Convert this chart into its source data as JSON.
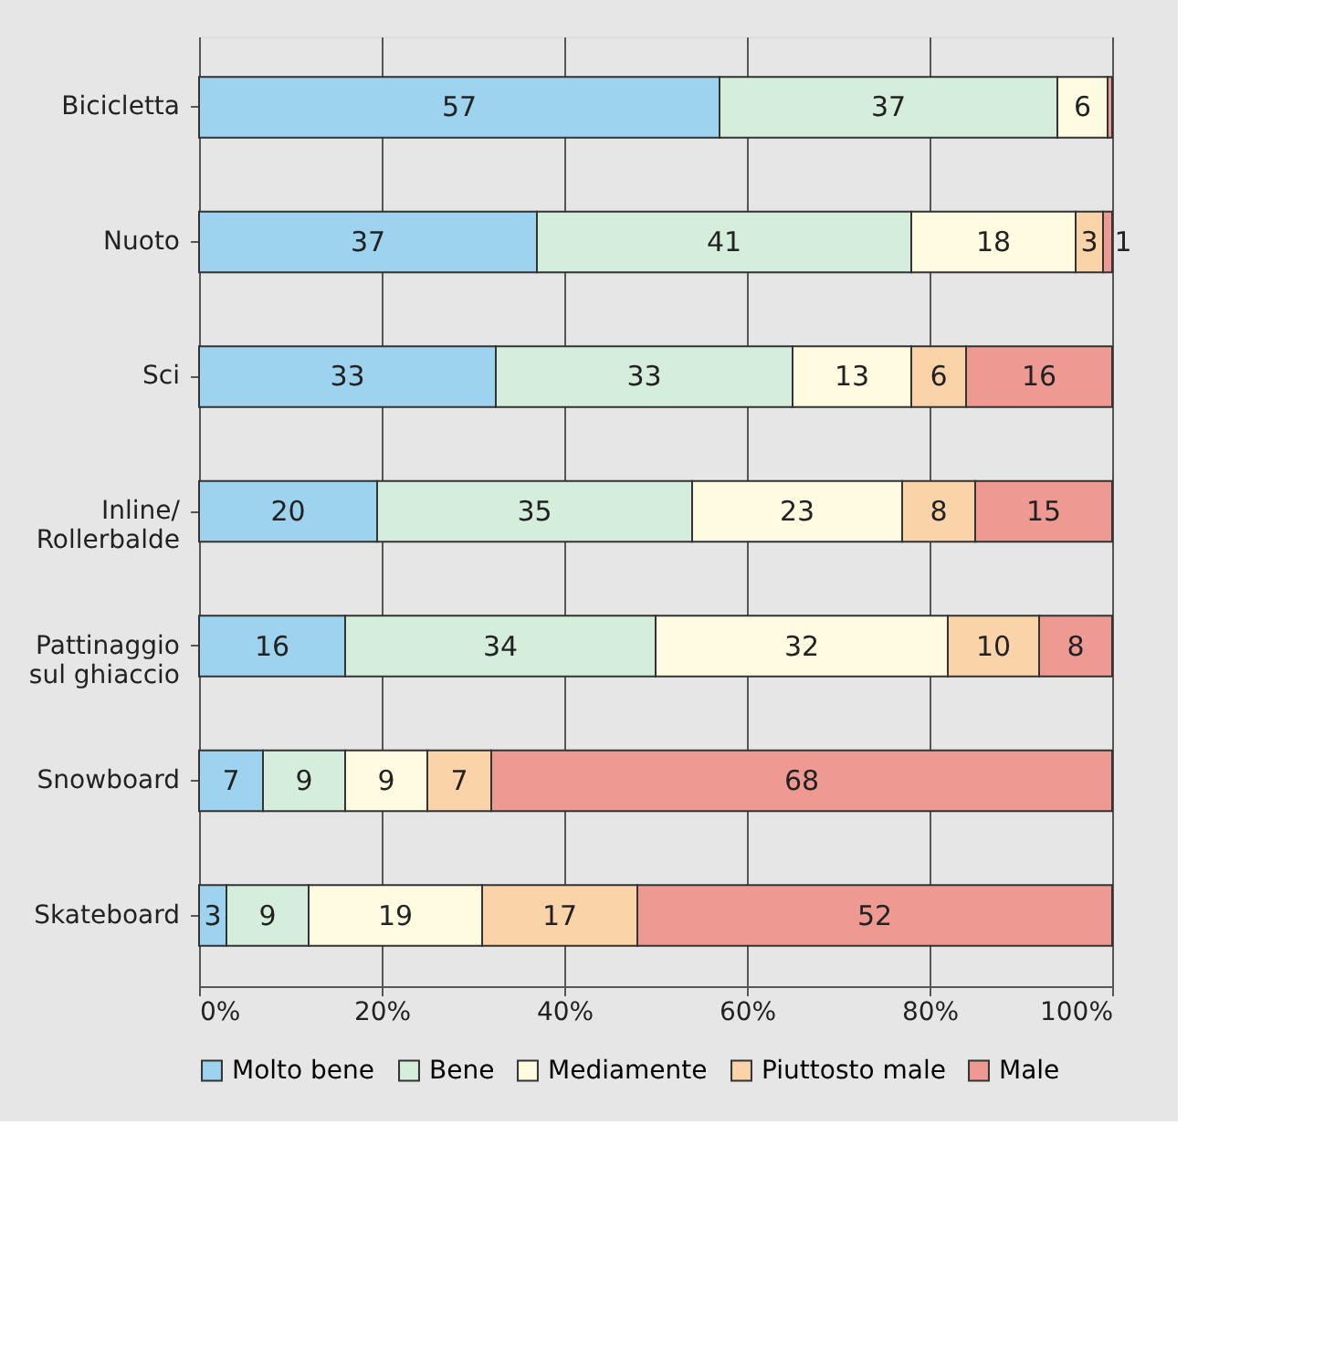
{
  "chart_data": {
    "type": "bar",
    "orientation": "horizontal",
    "stacked": true,
    "categories": [
      "Bicicletta",
      "Nuoto",
      "Sci",
      "Inline/\nRollerbalde",
      "Pattinaggio\nsul ghiaccio",
      "Snowboard",
      "Skateboard"
    ],
    "series": [
      {
        "name": "Molto bene",
        "color": "#9dd3ee",
        "values": [
          57,
          37,
          32.5,
          19.5,
          16,
          7,
          3
        ],
        "value_labels": [
          "57",
          "37",
          "33",
          "20",
          "16",
          "7",
          "3"
        ]
      },
      {
        "name": "Bene",
        "color": "#d5eedb",
        "values": [
          37,
          41,
          32.5,
          34.5,
          34,
          9,
          9
        ],
        "value_labels": [
          "37",
          "41",
          "33",
          "35",
          "34",
          "9",
          "9"
        ]
      },
      {
        "name": "Mediamente",
        "color": "#fffbe0",
        "values": [
          5.5,
          18,
          13,
          23,
          32,
          9,
          19
        ],
        "value_labels": [
          "6",
          "18",
          "13",
          "23",
          "32",
          "9",
          "19"
        ]
      },
      {
        "name": "Piuttosto male",
        "color": "#fbd3a9",
        "values": [
          null,
          3,
          6,
          8,
          10,
          7,
          17
        ],
        "value_labels": [
          null,
          "3",
          "6",
          "8",
          "10",
          "7",
          "17"
        ]
      },
      {
        "name": "Male",
        "color": "#ee9a92",
        "values": [
          0.5,
          1,
          16,
          15,
          8,
          68,
          52
        ],
        "value_labels": [
          null,
          "1",
          "16",
          "15",
          "8",
          "68",
          "52"
        ]
      }
    ],
    "xlim": [
      0,
      100
    ],
    "xticks": [
      {
        "value": 0,
        "label": "0%"
      },
      {
        "value": 20,
        "label": "20%"
      },
      {
        "value": 40,
        "label": "40%"
      },
      {
        "value": 60,
        "label": "60%"
      },
      {
        "value": 80,
        "label": "80%"
      },
      {
        "value": 100,
        "label": "100%"
      }
    ],
    "grid": "x",
    "legend": "bottom"
  }
}
